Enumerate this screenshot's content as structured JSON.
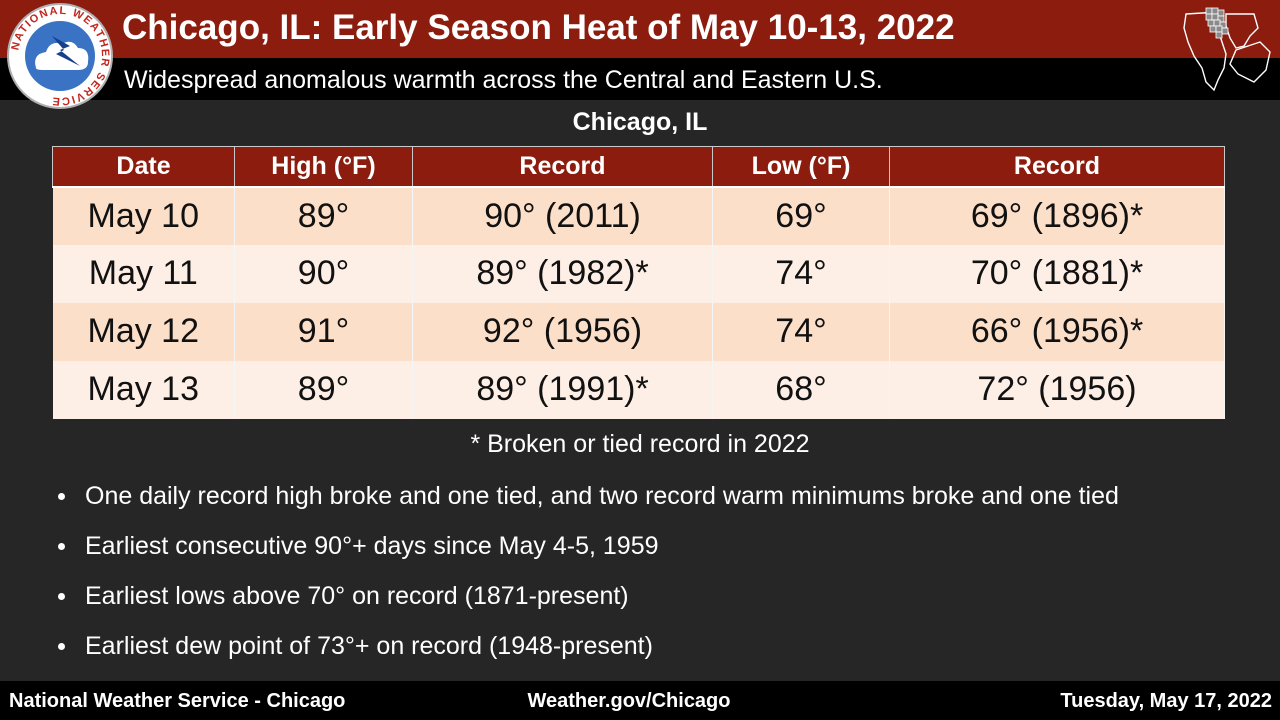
{
  "header": {
    "title": "Chicago, IL:  Early Season Heat of May 10-13, 2022",
    "subtitle": "Widespread anomalous warmth across the Central and Eastern U.S."
  },
  "logo": {
    "text": "NATIONAL WEATHER SERVICE",
    "icon": "nws-logo-icon"
  },
  "map": {
    "icon": "illinois-region-map-icon"
  },
  "table": {
    "heading": "Chicago, IL",
    "columns": [
      "Date",
      "High  (°F)",
      "Record",
      "Low (°F)",
      "Record"
    ],
    "rows": [
      [
        "May 10",
        "89°",
        "90° (2011)",
        "69°",
        "69° (1896)*"
      ],
      [
        "May 11",
        "90°",
        "89° (1982)*",
        "74°",
        "70° (1881)*"
      ],
      [
        "May 12",
        "91°",
        "92° (1956)",
        "74°",
        "66° (1956)*"
      ],
      [
        "May 13",
        "89°",
        "89° (1991)*",
        "68°",
        "72° (1956)"
      ]
    ]
  },
  "footnote": "* Broken or tied record in 2022",
  "bullets": [
    "One daily record high broke and one tied, and two record warm minimums broke and one tied",
    "Earliest consecutive 90°+ days since May 4-5, 1959",
    "Earliest lows above 70° on record (1871-present)",
    "Earliest dew point of 73°+ on record (1948-present)"
  ],
  "footer": {
    "left": "National  Weather Service - Chicago",
    "center": "Weather.gov/Chicago",
    "right": "Tuesday, May 17, 2022"
  },
  "colors": {
    "header_red": "#8b1c0e",
    "row_odd": "#fbdfc9",
    "row_even": "#fdefe5",
    "background": "#262626"
  }
}
